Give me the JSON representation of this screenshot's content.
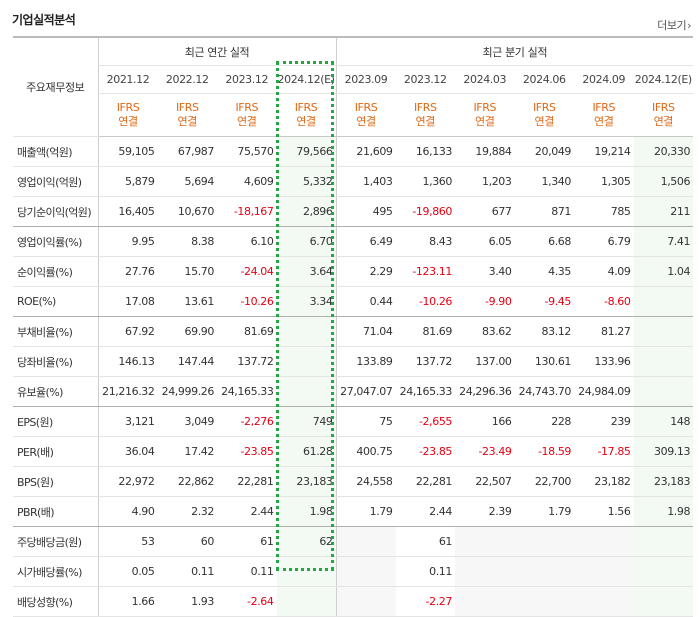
{
  "section": {
    "title": "기업실적분석",
    "more_label": "더보기",
    "more_arrow": "›"
  },
  "header": {
    "row_header_label": "주요재무정보",
    "annual_group": "최근 연간 실적",
    "quarter_group": "최근 분기 실적",
    "annual_periods": [
      "2021.12",
      "2022.12",
      "2023.12",
      "2024.12(E)"
    ],
    "quarter_periods": [
      "2023.09",
      "2023.12",
      "2024.03",
      "2024.06",
      "2024.09",
      "2024.12(E)"
    ],
    "ifrs_line1": "IFRS",
    "ifrs_line2": "연결"
  },
  "colors": {
    "negative": "#e60012",
    "ifrs": "#e06814",
    "estimate_highlight": "#21a842"
  },
  "rows": [
    {
      "label": "매출액(억원)",
      "values": [
        "59,105",
        "67,987",
        "75,570",
        "79,566",
        "21,609",
        "16,133",
        "19,884",
        "20,049",
        "19,214",
        "20,330"
      ]
    },
    {
      "label": "영업이익(억원)",
      "values": [
        "5,879",
        "5,694",
        "4,609",
        "5,332",
        "1,403",
        "1,360",
        "1,203",
        "1,340",
        "1,305",
        "1,506"
      ]
    },
    {
      "label": "당기순이익(억원)",
      "values": [
        "16,405",
        "10,670",
        "-18,167",
        "2,896",
        "495",
        "-19,860",
        "677",
        "871",
        "785",
        "211"
      ]
    },
    {
      "label": "영업이익률(%)",
      "values": [
        "9.95",
        "8.38",
        "6.10",
        "6.70",
        "6.49",
        "8.43",
        "6.05",
        "6.68",
        "6.79",
        "7.41"
      ]
    },
    {
      "label": "순이익률(%)",
      "values": [
        "27.76",
        "15.70",
        "-24.04",
        "3.64",
        "2.29",
        "-123.11",
        "3.40",
        "4.35",
        "4.09",
        "1.04"
      ]
    },
    {
      "label": "ROE(%)",
      "values": [
        "17.08",
        "13.61",
        "-10.26",
        "3.34",
        "0.44",
        "-10.26",
        "-9.90",
        "-9.45",
        "-8.60",
        ""
      ]
    },
    {
      "label": "부채비율(%)",
      "values": [
        "67.92",
        "69.90",
        "81.69",
        "",
        "71.04",
        "81.69",
        "83.62",
        "83.12",
        "81.27",
        ""
      ]
    },
    {
      "label": "당좌비율(%)",
      "values": [
        "146.13",
        "147.44",
        "137.72",
        "",
        "133.89",
        "137.72",
        "137.00",
        "130.61",
        "133.96",
        ""
      ]
    },
    {
      "label": "유보율(%)",
      "values": [
        "21,216.32",
        "24,999.26",
        "24,165.33",
        "",
        "27,047.07",
        "24,165.33",
        "24,296.36",
        "24,743.70",
        "24,984.09",
        ""
      ]
    },
    {
      "label": "EPS(원)",
      "values": [
        "3,121",
        "3,049",
        "-2,276",
        "749",
        "75",
        "-2,655",
        "166",
        "228",
        "239",
        "148"
      ]
    },
    {
      "label": "PER(배)",
      "values": [
        "36.04",
        "17.42",
        "-23.85",
        "61.28",
        "400.75",
        "-23.85",
        "-23.49",
        "-18.59",
        "-17.85",
        "309.13"
      ]
    },
    {
      "label": "BPS(원)",
      "values": [
        "22,972",
        "22,862",
        "22,281",
        "23,183",
        "24,558",
        "22,281",
        "22,507",
        "22,700",
        "23,182",
        "23,183"
      ]
    },
    {
      "label": "PBR(배)",
      "values": [
        "4.90",
        "2.32",
        "2.44",
        "1.98",
        "1.79",
        "2.44",
        "2.39",
        "1.79",
        "1.56",
        "1.98"
      ]
    },
    {
      "label": "주당배당금(원)",
      "values": [
        "53",
        "60",
        "61",
        "62",
        "",
        "61",
        "",
        "",
        "",
        ""
      ]
    },
    {
      "label": "시가배당률(%)",
      "values": [
        "0.05",
        "0.11",
        "0.11",
        "",
        "",
        "0.11",
        "",
        "",
        "",
        ""
      ]
    },
    {
      "label": "배당성향(%)",
      "values": [
        "1.66",
        "1.93",
        "-2.64",
        "",
        "",
        "-2.27",
        "",
        "",
        "",
        ""
      ]
    }
  ]
}
